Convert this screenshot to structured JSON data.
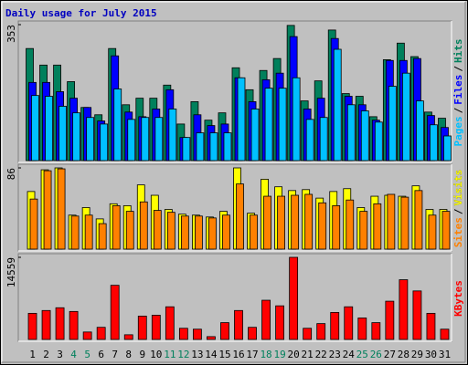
{
  "title": "Daily usage for July 2015",
  "legend_separator": "/",
  "highlight": {
    "color": "#00805c",
    "categories": [
      3,
      4,
      10,
      11,
      17,
      18,
      24,
      25
    ]
  },
  "categories": [
    "1",
    "2",
    "3",
    "4",
    "5",
    "6",
    "7",
    "8",
    "9",
    "10",
    "11",
    "12",
    "13",
    "14",
    "15",
    "16",
    "17",
    "18",
    "19",
    "20",
    "21",
    "22",
    "23",
    "24",
    "25",
    "26",
    "27",
    "28",
    "29",
    "30",
    "31"
  ],
  "chart_data": [
    {
      "type": "bar",
      "ylim": [
        0,
        353
      ],
      "yticks": [
        353
      ],
      "series": [
        {
          "name": "Pages",
          "color": "#00c0ff",
          "values": [
            169,
            167,
            141,
            124,
            112,
            95,
            186,
            107,
            112,
            112,
            134,
            60,
            72,
            72,
            72,
            215,
            134,
            188,
            188,
            215,
            107,
            112,
            289,
            145,
            129,
            100,
            193,
            227,
            155,
            93,
            64
          ]
        },
        {
          "name": "Files",
          "color": "#0000ff",
          "values": [
            203,
            203,
            179,
            162,
            138,
            103,
            272,
            126,
            114,
            134,
            184,
            60,
            119,
            91,
            95,
            215,
            153,
            210,
            227,
            322,
            134,
            162,
            317,
            167,
            145,
            105,
            260,
            260,
            265,
            117,
            86
          ]
        },
        {
          "name": "Hits",
          "color": "#00805c",
          "values": [
            291,
            248,
            248,
            205,
            138,
            119,
            291,
            145,
            162,
            162,
            196,
            95,
            153,
            105,
            124,
            241,
            184,
            234,
            265,
            351,
            155,
            207,
            339,
            174,
            167,
            114,
            262,
            305,
            270,
            126,
            110
          ]
        }
      ]
    },
    {
      "type": "bar",
      "ylim": [
        0,
        86
      ],
      "yticks": [
        86
      ],
      "series": [
        {
          "name": "Sites",
          "color": "#ff8000",
          "values": [
            53,
            83,
            85,
            35,
            36,
            27,
            46,
            40,
            50,
            41,
            39,
            35,
            35,
            33,
            36,
            69,
            36,
            56,
            56,
            57,
            58,
            49,
            46,
            52,
            40,
            48,
            58,
            55,
            62,
            36,
            40
          ]
        },
        {
          "name": "Visits",
          "color": "#ffff00",
          "values": [
            61,
            84,
            86,
            36,
            44,
            32,
            48,
            46,
            68,
            57,
            42,
            37,
            36,
            34,
            40,
            86,
            38,
            74,
            66,
            62,
            63,
            54,
            61,
            64,
            44,
            56,
            57,
            56,
            67,
            42,
            42
          ]
        }
      ]
    },
    {
      "type": "bar",
      "ylim": [
        0,
        14559
      ],
      "yticks": [
        14559
      ],
      "series": [
        {
          "name": "KBytes",
          "color": "#ff0000",
          "values": [
            4630,
            5130,
            5620,
            4960,
            1320,
            2150,
            9600,
            830,
            4140,
            4300,
            5790,
            1980,
            1820,
            500,
            2980,
            5130,
            2150,
            6950,
            5960,
            14559,
            1980,
            2810,
            4790,
            5790,
            3810,
            2980,
            6780,
            10590,
            8600,
            4630,
            1820
          ]
        }
      ]
    }
  ]
}
